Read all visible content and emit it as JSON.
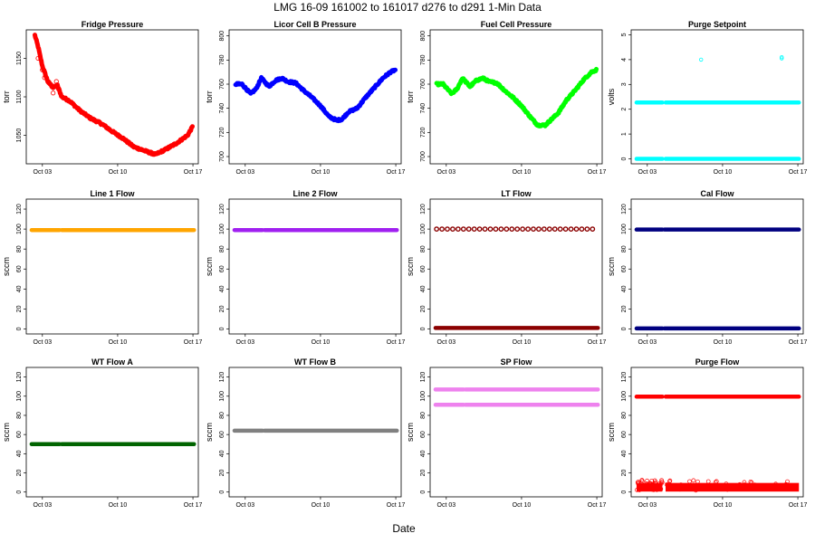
{
  "figure": {
    "title": "LMG   16-09    161002 to 161017    d276 to d291   1-Min Data",
    "xlabel": "Date"
  },
  "chart_data": [
    {
      "type": "scatter",
      "title": "Fridge Pressure",
      "ylabel": "torr",
      "color": "#ff0000",
      "ylim": [
        1013,
        1187
      ],
      "yticks": [
        1050,
        1100,
        1150
      ],
      "x_range_days": [
        275.5,
        291.5
      ],
      "xticks": [
        {
          "label": "Oct 03",
          "day": 277
        },
        {
          "label": "Oct 10",
          "day": 284
        },
        {
          "label": "Oct 17",
          "day": 291
        }
      ],
      "series": [
        {
          "kind": "trend",
          "points": [
            [
              276.3,
              1180
            ],
            [
              276.6,
              1165
            ],
            [
              277.0,
              1140
            ],
            [
              277.5,
              1120
            ],
            [
              278.0,
              1112
            ],
            [
              278.4,
              1115
            ],
            [
              278.8,
              1100
            ],
            [
              279.5,
              1095
            ],
            [
              280.5,
              1082
            ],
            [
              281.5,
              1072
            ],
            [
              282.5,
              1065
            ],
            [
              283.5,
              1055
            ],
            [
              284.5,
              1046
            ],
            [
              285.5,
              1035
            ],
            [
              286.5,
              1030
            ],
            [
              287.5,
              1025
            ],
            [
              288.5,
              1032
            ],
            [
              289.5,
              1040
            ],
            [
              290.5,
              1050
            ],
            [
              291.0,
              1062
            ]
          ],
          "scatter": [
            [
              276.6,
              1150
            ],
            [
              277.0,
              1135
            ],
            [
              277.2,
              1125
            ],
            [
              277.6,
              1118
            ],
            [
              278.0,
              1105
            ],
            [
              278.3,
              1120
            ],
            [
              278.5,
              1110
            ]
          ]
        }
      ]
    },
    {
      "type": "scatter",
      "title": "Licor Cell B Pressure",
      "ylabel": "torr",
      "color": "#0000ff",
      "ylim": [
        694,
        805
      ],
      "yticks": [
        700,
        720,
        740,
        760,
        780,
        800
      ],
      "x_range_days": [
        275.5,
        291.5
      ],
      "xticks": [
        {
          "label": "Oct 03",
          "day": 277
        },
        {
          "label": "Oct 10",
          "day": 284
        },
        {
          "label": "Oct 17",
          "day": 291
        }
      ],
      "series": [
        {
          "kind": "trend",
          "points": [
            [
              276.1,
              760
            ],
            [
              276.7,
              760
            ],
            [
              277.5,
              752
            ],
            [
              278.0,
              756
            ],
            [
              278.5,
              765
            ],
            [
              278.8,
              762
            ],
            [
              279.2,
              758
            ],
            [
              279.8,
              763
            ],
            [
              280.4,
              765
            ],
            [
              281.0,
              762
            ],
            [
              281.7,
              761
            ],
            [
              282.4,
              755
            ],
            [
              283.2,
              749
            ],
            [
              284.0,
              742
            ],
            [
              284.8,
              733
            ],
            [
              285.5,
              730
            ],
            [
              286.0,
              731
            ],
            [
              286.6,
              737
            ],
            [
              287.4,
              740
            ],
            [
              288.2,
              749
            ],
            [
              289.0,
              757
            ],
            [
              289.8,
              765
            ],
            [
              290.5,
              770
            ],
            [
              291.0,
              772
            ]
          ]
        }
      ]
    },
    {
      "type": "scatter",
      "title": "Fuel Cell Pressure",
      "ylabel": "torr",
      "color": "#00ff00",
      "ylim": [
        694,
        805
      ],
      "yticks": [
        700,
        720,
        740,
        760,
        780,
        800
      ],
      "x_range_days": [
        275.5,
        291.5
      ],
      "xticks": [
        {
          "label": "Oct 03",
          "day": 277
        },
        {
          "label": "Oct 10",
          "day": 284
        },
        {
          "label": "Oct 17",
          "day": 291
        }
      ],
      "series": [
        {
          "kind": "trend",
          "points": [
            [
              276.1,
              760
            ],
            [
              276.7,
              760
            ],
            [
              277.5,
              752
            ],
            [
              278.0,
              756
            ],
            [
              278.5,
              765
            ],
            [
              278.8,
              762
            ],
            [
              279.2,
              758
            ],
            [
              279.8,
              763
            ],
            [
              280.4,
              765
            ],
            [
              281.0,
              762
            ],
            [
              281.7,
              761
            ],
            [
              282.4,
              755
            ],
            [
              283.2,
              749
            ],
            [
              284.0,
              742
            ],
            [
              284.8,
              733
            ],
            [
              285.5,
              726
            ],
            [
              286.2,
              726
            ],
            [
              286.8,
              731
            ],
            [
              287.4,
              736
            ],
            [
              288.2,
              747
            ],
            [
              289.0,
              755
            ],
            [
              289.8,
              764
            ],
            [
              290.5,
              770
            ],
            [
              291.0,
              772
            ]
          ]
        }
      ]
    },
    {
      "type": "scatter",
      "title": "Purge Setpoint",
      "ylabel": "volts",
      "color": "#00ffff",
      "ylim": [
        -0.2,
        5.2
      ],
      "yticks": [
        0,
        1,
        2,
        3,
        4,
        5
      ],
      "x_range_days": [
        275.5,
        291.5
      ],
      "xticks": [
        {
          "label": "Oct 03",
          "day": 277
        },
        {
          "label": "Oct 10",
          "day": 284
        },
        {
          "label": "Oct 17",
          "day": 291
        }
      ],
      "series": [
        {
          "kind": "band",
          "y": 2.27,
          "spread": 0.05,
          "segments": [
            [
              276.0,
              278.4
            ],
            [
              278.7,
              291.1
            ]
          ]
        },
        {
          "kind": "band",
          "y": 0.0,
          "spread": 0.02,
          "segments": [
            [
              276.0,
              278.4
            ],
            [
              278.7,
              291.1
            ]
          ]
        }
      ],
      "outliers": [
        [
          282.0,
          4.0
        ],
        [
          289.5,
          4.05
        ],
        [
          289.5,
          4.1
        ]
      ]
    },
    {
      "type": "scatter",
      "title": "Line 1 Flow",
      "ylabel": "sccm",
      "color": "#ffa500",
      "ylim": [
        -5,
        130
      ],
      "yticks": [
        0,
        20,
        40,
        60,
        80,
        100,
        120
      ],
      "x_range_days": [
        275.5,
        291.5
      ],
      "xticks": [
        {
          "label": "Oct 03",
          "day": 277
        },
        {
          "label": "Oct 10",
          "day": 284
        },
        {
          "label": "Oct 17",
          "day": 291
        }
      ],
      "series": [
        {
          "kind": "band",
          "y": 99,
          "spread": 0.5,
          "segments": [
            [
              276.0,
              278.6
            ],
            [
              278.8,
              291.1
            ]
          ]
        }
      ]
    },
    {
      "type": "scatter",
      "title": "Line 2 Flow",
      "ylabel": "sccm",
      "color": "#a020f0",
      "ylim": [
        -5,
        130
      ],
      "yticks": [
        0,
        20,
        40,
        60,
        80,
        100,
        120
      ],
      "x_range_days": [
        275.5,
        291.5
      ],
      "xticks": [
        {
          "label": "Oct 03",
          "day": 277
        },
        {
          "label": "Oct 10",
          "day": 284
        },
        {
          "label": "Oct 17",
          "day": 291
        }
      ],
      "series": [
        {
          "kind": "band",
          "y": 99,
          "spread": 0.5,
          "segments": [
            [
              276.0,
              278.6
            ],
            [
              278.8,
              291.1
            ]
          ]
        }
      ]
    },
    {
      "type": "scatter",
      "title": "LT Flow",
      "ylabel": "sccm",
      "color": "#8b0000",
      "ylim": [
        -5,
        130
      ],
      "yticks": [
        0,
        20,
        40,
        60,
        80,
        100,
        120
      ],
      "x_range_days": [
        275.5,
        291.5
      ],
      "xticks": [
        {
          "label": "Oct 03",
          "day": 277
        },
        {
          "label": "Oct 10",
          "day": 284
        },
        {
          "label": "Oct 17",
          "day": 291
        }
      ],
      "series": [
        {
          "kind": "band",
          "y": 1,
          "spread": 0.6,
          "segments": [
            [
              276.0,
              291.1
            ]
          ]
        },
        {
          "kind": "periodic",
          "y": 100,
          "start": 276.1,
          "end": 291.0,
          "step": 0.5
        }
      ]
    },
    {
      "type": "scatter",
      "title": "Cal Flow",
      "ylabel": "sccm",
      "color": "#000080",
      "ylim": [
        -5,
        130
      ],
      "yticks": [
        0,
        20,
        40,
        60,
        80,
        100,
        120
      ],
      "x_range_days": [
        275.5,
        291.5
      ],
      "xticks": [
        {
          "label": "Oct 03",
          "day": 277
        },
        {
          "label": "Oct 10",
          "day": 284
        },
        {
          "label": "Oct 17",
          "day": 291
        }
      ],
      "series": [
        {
          "kind": "band",
          "y": 99.5,
          "spread": 0.3,
          "segments": [
            [
              276.0,
              278.4
            ],
            [
              278.6,
              291.1
            ]
          ]
        },
        {
          "kind": "band",
          "y": 0.5,
          "spread": 0.3,
          "segments": [
            [
              276.0,
              278.4
            ],
            [
              278.6,
              291.1
            ]
          ]
        }
      ]
    },
    {
      "type": "scatter",
      "title": "WT Flow A",
      "ylabel": "sccm",
      "color": "#006400",
      "ylim": [
        -5,
        130
      ],
      "yticks": [
        0,
        20,
        40,
        60,
        80,
        100,
        120
      ],
      "x_range_days": [
        275.5,
        291.5
      ],
      "xticks": [
        {
          "label": "Oct 03",
          "day": 277
        },
        {
          "label": "Oct 10",
          "day": 284
        },
        {
          "label": "Oct 17",
          "day": 291
        }
      ],
      "series": [
        {
          "kind": "band",
          "y": 50,
          "spread": 0.4,
          "segments": [
            [
              276.0,
              278.6
            ],
            [
              278.8,
              291.1
            ]
          ]
        }
      ]
    },
    {
      "type": "scatter",
      "title": "WT Flow B",
      "ylabel": "sccm",
      "color": "#808080",
      "ylim": [
        -5,
        130
      ],
      "yticks": [
        0,
        20,
        40,
        60,
        80,
        100,
        120
      ],
      "x_range_days": [
        275.5,
        291.5
      ],
      "xticks": [
        {
          "label": "Oct 03",
          "day": 277
        },
        {
          "label": "Oct 10",
          "day": 284
        },
        {
          "label": "Oct 17",
          "day": 291
        }
      ],
      "series": [
        {
          "kind": "band",
          "y": 64,
          "spread": 0.5,
          "segments": [
            [
              276.0,
              278.6
            ],
            [
              278.8,
              291.1
            ]
          ]
        }
      ]
    },
    {
      "type": "scatter",
      "title": "SP Flow",
      "ylabel": "sccm",
      "color": "#ee82ee",
      "ylim": [
        -5,
        130
      ],
      "yticks": [
        0,
        20,
        40,
        60,
        80,
        100,
        120
      ],
      "x_range_days": [
        275.5,
        291.5
      ],
      "xticks": [
        {
          "label": "Oct 03",
          "day": 277
        },
        {
          "label": "Oct 10",
          "day": 284
        },
        {
          "label": "Oct 17",
          "day": 291
        }
      ],
      "series": [
        {
          "kind": "band",
          "y": 107,
          "spread": 1.0,
          "segments": [
            [
              276.0,
              278.6
            ],
            [
              278.8,
              291.1
            ]
          ]
        },
        {
          "kind": "band",
          "y": 91,
          "spread": 0.6,
          "segments": [
            [
              276.0,
              278.6
            ],
            [
              278.8,
              291.1
            ]
          ]
        }
      ]
    },
    {
      "type": "scatter",
      "title": "Purge Flow",
      "ylabel": "sccm",
      "color": "#ff0000",
      "ylim": [
        -5,
        130
      ],
      "yticks": [
        0,
        20,
        40,
        60,
        80,
        100,
        120
      ],
      "x_range_days": [
        275.5,
        291.5
      ],
      "xticks": [
        {
          "label": "Oct 03",
          "day": 277
        },
        {
          "label": "Oct 10",
          "day": 284
        },
        {
          "label": "Oct 17",
          "day": 291
        }
      ],
      "series": [
        {
          "kind": "band",
          "y": 99.5,
          "spread": 1.0,
          "segments": [
            [
              276.0,
              278.4
            ],
            [
              278.7,
              291.1
            ]
          ]
        },
        {
          "kind": "noise",
          "y": 5,
          "spread": 5,
          "segments": [
            [
              276.0,
              278.4
            ],
            [
              278.7,
              291.1
            ]
          ]
        }
      ]
    }
  ]
}
